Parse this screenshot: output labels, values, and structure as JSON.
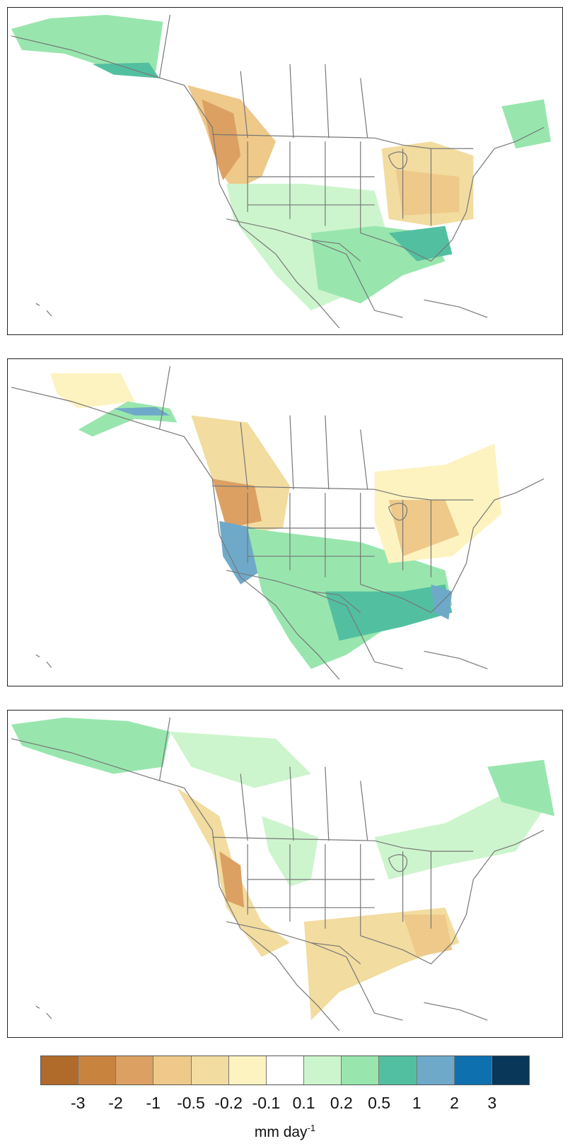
{
  "maps": [
    {
      "id": "panel-1",
      "pattern": "wet-south-dry-northwest-east"
    },
    {
      "id": "panel-2",
      "pattern": "strong-wet-southeast-dry-north"
    },
    {
      "id": "panel-3",
      "pattern": "dry-south-wet-north"
    }
  ],
  "legend": {
    "colors": [
      "#b06a2a",
      "#c8843f",
      "#dca063",
      "#eec98a",
      "#f2dca0",
      "#fdf3c0",
      "#ffffff",
      "#cdf5cd",
      "#98e6ae",
      "#52c0a0",
      "#6fa9c9",
      "#0f70b0",
      "#08375a"
    ],
    "tick_labels": [
      "-3",
      "-2",
      "-1",
      "-0.5",
      "-0.2",
      "-0.1",
      "0.1",
      "0.2",
      "0.5",
      "1",
      "2",
      "3"
    ],
    "units": "mm day",
    "units_exponent": "-1"
  }
}
